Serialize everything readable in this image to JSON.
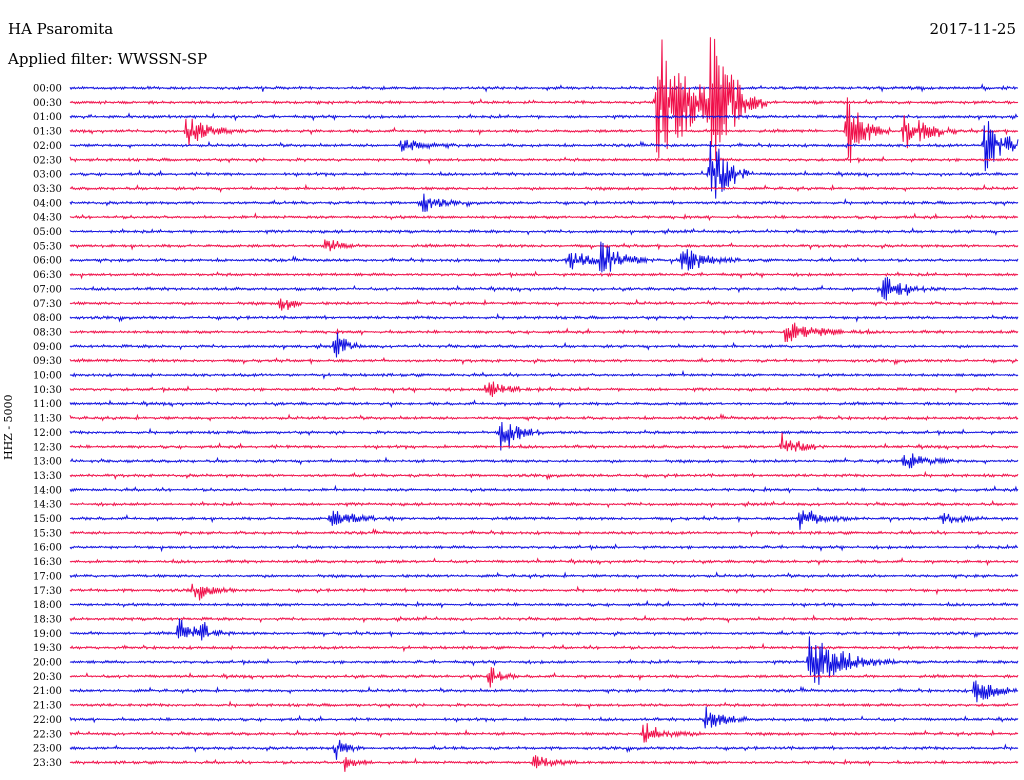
{
  "header": {
    "station": "HA Psaromita",
    "filter": "Applied filter: WWSSN-SP",
    "date": "2017-11-25"
  },
  "colors": {
    "blue": "#1010e0",
    "red": "#f0104a"
  },
  "chart_data": {
    "type": "line",
    "title": "HA Psaromita",
    "subtitle": "Applied filter: WWSSN-SP",
    "ylabel": "HHZ - 5000",
    "date": "2017-11-25",
    "rows": [
      "00:00",
      "00:30",
      "01:00",
      "01:30",
      "02:00",
      "02:30",
      "03:00",
      "03:30",
      "04:00",
      "04:30",
      "05:00",
      "05:30",
      "06:00",
      "06:30",
      "07:00",
      "07:30",
      "08:00",
      "08:30",
      "09:00",
      "09:30",
      "10:00",
      "10:30",
      "11:00",
      "11:30",
      "12:00",
      "12:30",
      "13:00",
      "13:30",
      "14:00",
      "14:30",
      "15:00",
      "15:30",
      "16:00",
      "16:30",
      "17:00",
      "17:30",
      "18:00",
      "18:30",
      "19:00",
      "19:30",
      "20:00",
      "20:30",
      "21:00",
      "21:30",
      "22:00",
      "22:30",
      "23:00",
      "23:30"
    ],
    "row_colors": [
      "blue",
      "red"
    ],
    "events": [
      {
        "row": 1,
        "t": 0.62,
        "amp": 10,
        "dur": 0.03
      },
      {
        "row": 1,
        "t": 0.675,
        "amp": 9,
        "dur": 0.02
      },
      {
        "row": 3,
        "t": 0.123,
        "amp": 2,
        "dur": 0.02
      },
      {
        "row": 3,
        "t": 0.82,
        "amp": 5,
        "dur": 0.015
      },
      {
        "row": 3,
        "t": 0.88,
        "amp": 3,
        "dur": 0.02
      },
      {
        "row": 4,
        "t": 0.35,
        "amp": 1,
        "dur": 0.02
      },
      {
        "row": 4,
        "t": 0.965,
        "amp": 4,
        "dur": 0.02
      },
      {
        "row": 6,
        "t": 0.675,
        "amp": 6,
        "dur": 0.015
      },
      {
        "row": 8,
        "t": 0.37,
        "amp": 1.5,
        "dur": 0.015
      },
      {
        "row": 11,
        "t": 0.27,
        "amp": 2,
        "dur": 0.01
      },
      {
        "row": 12,
        "t": 0.525,
        "amp": 1.5,
        "dur": 0.02
      },
      {
        "row": 12,
        "t": 0.56,
        "amp": 2.5,
        "dur": 0.02
      },
      {
        "row": 12,
        "t": 0.645,
        "amp": 2,
        "dur": 0.02
      },
      {
        "row": 14,
        "t": 0.855,
        "amp": 2,
        "dur": 0.02
      },
      {
        "row": 15,
        "t": 0.222,
        "amp": 1.5,
        "dur": 0.01
      },
      {
        "row": 17,
        "t": 0.755,
        "amp": 1.5,
        "dur": 0.03
      },
      {
        "row": 18,
        "t": 0.28,
        "amp": 2,
        "dur": 0.01
      },
      {
        "row": 21,
        "t": 0.44,
        "amp": 1.5,
        "dur": 0.02
      },
      {
        "row": 24,
        "t": 0.455,
        "amp": 3,
        "dur": 0.015
      },
      {
        "row": 25,
        "t": 0.75,
        "amp": 2,
        "dur": 0.015
      },
      {
        "row": 26,
        "t": 0.88,
        "amp": 1.2,
        "dur": 0.02
      },
      {
        "row": 30,
        "t": 0.275,
        "amp": 1,
        "dur": 0.03
      },
      {
        "row": 30,
        "t": 0.77,
        "amp": 1.5,
        "dur": 0.02
      },
      {
        "row": 30,
        "t": 0.92,
        "amp": 1,
        "dur": 0.015
      },
      {
        "row": 35,
        "t": 0.13,
        "amp": 1.5,
        "dur": 0.015
      },
      {
        "row": 38,
        "t": 0.115,
        "amp": 2,
        "dur": 0.015
      },
      {
        "row": 38,
        "t": 0.14,
        "amp": 1.5,
        "dur": 0.01
      },
      {
        "row": 40,
        "t": 0.78,
        "amp": 4,
        "dur": 0.03
      },
      {
        "row": 41,
        "t": 0.44,
        "amp": 2,
        "dur": 0.01
      },
      {
        "row": 42,
        "t": 0.955,
        "amp": 2.5,
        "dur": 0.015
      },
      {
        "row": 44,
        "t": 0.67,
        "amp": 2,
        "dur": 0.015
      },
      {
        "row": 45,
        "t": 0.605,
        "amp": 1.5,
        "dur": 0.02
      },
      {
        "row": 46,
        "t": 0.28,
        "amp": 1.5,
        "dur": 0.01
      },
      {
        "row": 47,
        "t": 0.29,
        "amp": 1.2,
        "dur": 0.01
      },
      {
        "row": 47,
        "t": 0.49,
        "amp": 1.2,
        "dur": 0.015
      }
    ],
    "grid": false,
    "legend": "none"
  }
}
